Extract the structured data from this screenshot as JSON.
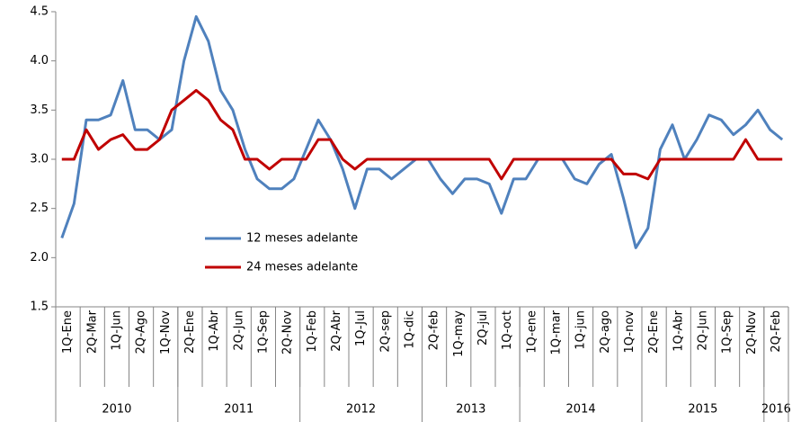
{
  "chart_data": {
    "type": "line",
    "categories": [
      "1Q-Ene",
      null,
      "2Q-Mar",
      null,
      "1Q-Jun",
      null,
      "2Q-Ago",
      null,
      "1Q-Nov",
      null,
      "2Q-Ene",
      null,
      "1Q-Abr",
      null,
      "2Q-Jun",
      null,
      "1Q-Sep",
      null,
      "2Q-Nov",
      null,
      "1Q-Feb",
      null,
      "2Q-Abr",
      null,
      "1Q-Jul",
      null,
      "2Q-sep",
      null,
      "1Q-dic",
      null,
      "2Q-feb",
      null,
      "1Q-may",
      null,
      "2Q-jul",
      null,
      "1Q-oct",
      null,
      "1Q-ene",
      null,
      "1Q-mar",
      null,
      "1Q-jun",
      null,
      "2Q-ago",
      null,
      "1Q-nov",
      null,
      "2Q-Ene",
      null,
      "1Q-Abr",
      null,
      "2Q-Jun",
      null,
      "1Q-Sep",
      null,
      "2Q-Nov",
      null,
      "2Q-Feb",
      null
    ],
    "x_groups": [
      "2010",
      "2010",
      "2010",
      "2010",
      "2010",
      "2010",
      "2010",
      "2010",
      "2010",
      "2010",
      "2011",
      "2011",
      "2011",
      "2011",
      "2011",
      "2011",
      "2011",
      "2011",
      "2011",
      "2011",
      "2012",
      "2012",
      "2012",
      "2012",
      "2012",
      "2012",
      "2012",
      "2012",
      "2012",
      "2012",
      "2013",
      "2013",
      "2013",
      "2013",
      "2013",
      "2013",
      "2013",
      "2013",
      "2014",
      "2014",
      "2014",
      "2014",
      "2014",
      "2014",
      "2014",
      "2014",
      "2014",
      "2014",
      "2015",
      "2015",
      "2015",
      "2015",
      "2015",
      "2015",
      "2015",
      "2015",
      "2015",
      "2015",
      "2016",
      "2016"
    ],
    "series": [
      {
        "name": "12 meses adelante",
        "color": "#4f81bd",
        "values": [
          2.2,
          2.55,
          3.4,
          3.4,
          3.45,
          3.8,
          3.3,
          3.3,
          3.2,
          3.3,
          4.0,
          4.45,
          4.2,
          3.7,
          3.5,
          3.1,
          2.8,
          2.7,
          2.7,
          2.8,
          3.1,
          3.4,
          3.2,
          2.9,
          2.5,
          2.9,
          2.9,
          2.8,
          2.9,
          3.0,
          3.0,
          2.8,
          2.65,
          2.8,
          2.8,
          2.75,
          2.45,
          2.8,
          2.8,
          3.0,
          3.0,
          3.0,
          2.8,
          2.75,
          2.95,
          3.05,
          2.6,
          2.1,
          2.3,
          3.1,
          3.35,
          3.0,
          3.2,
          3.45,
          3.4,
          3.25,
          3.35,
          3.5,
          3.3,
          3.2
        ]
      },
      {
        "name": "24 meses adelante",
        "color": "#c00000",
        "values": [
          3.0,
          3.0,
          3.3,
          3.1,
          3.2,
          3.25,
          3.1,
          3.1,
          3.2,
          3.5,
          3.6,
          3.7,
          3.6,
          3.4,
          3.3,
          3.0,
          3.0,
          2.9,
          3.0,
          3.0,
          3.0,
          3.2,
          3.2,
          3.0,
          2.9,
          3.0,
          3.0,
          3.0,
          3.0,
          3.0,
          3.0,
          3.0,
          3.0,
          3.0,
          3.0,
          3.0,
          2.8,
          3.0,
          3.0,
          3.0,
          3.0,
          3.0,
          3.0,
          3.0,
          3.0,
          3.0,
          2.85,
          2.85,
          2.8,
          3.0,
          3.0,
          3.0,
          3.0,
          3.0,
          3.0,
          3.0,
          3.2,
          3.0,
          3.0,
          3.0
        ]
      }
    ],
    "ylim": [
      1.5,
      4.5
    ],
    "yticks": [
      1.5,
      {
        "value": 2,
        "label": "2.0"
      },
      2.5,
      {
        "value": 3,
        "label": "3.0"
      },
      3.5,
      {
        "value": 4,
        "label": "4.0"
      },
      4.5
    ],
    "grid": false
  }
}
